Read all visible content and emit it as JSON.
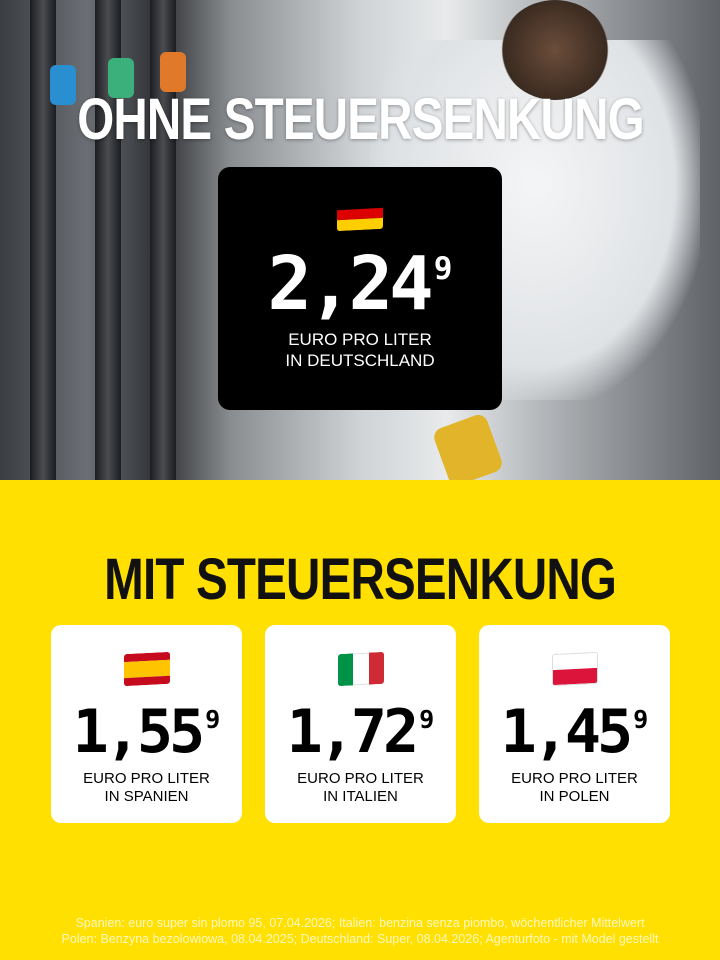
{
  "header": {
    "title": "OHNE STEUERSENKUNG"
  },
  "germany": {
    "flag_icon": "germany-flag-icon",
    "flag_colors": [
      "#000000",
      "#DD0000",
      "#FFCE00"
    ],
    "price_main": "2,24",
    "price_sup": "9",
    "label_line1": "EURO PRO LITER",
    "label_line2": "IN DEUTSCHLAND"
  },
  "section": {
    "title": "MIT STEUERSENKUNG"
  },
  "countries": [
    {
      "flag_icon": "spain-flag-icon",
      "flag_colors": [
        "#C60B1E",
        "#FFC400",
        "#C60B1E"
      ],
      "price_main": "1,55",
      "price_sup": "9",
      "label_line1": "EURO PRO LITER",
      "label_line2": "IN SPANIEN"
    },
    {
      "flag_icon": "italy-flag-icon",
      "flag_colors": [
        "#009246",
        "#FFFFFF",
        "#CE2B37"
      ],
      "price_main": "1,72",
      "price_sup": "9",
      "label_line1": "EURO PRO LITER",
      "label_line2": "IN ITALIEN"
    },
    {
      "flag_icon": "poland-flag-icon",
      "flag_colors": [
        "#FFFFFF",
        "#DC143C"
      ],
      "price_main": "1,45",
      "price_sup": "9",
      "label_line1": "EURO PRO LITER",
      "label_line2": "IN POLEN"
    }
  ],
  "footer": {
    "line1": "Spanien: euro super sin plomo 95, 07.04.2026; Italien: benzina senza piombo, wöchentlicher Mittelwert",
    "line2": "Polen: Benzyna bezolowiowa, 08.04.2025; Deutschland: Super, 08.04.2026; Agenturfoto - mit Model gestellt"
  },
  "colors": {
    "background_yellow": "#FFE000",
    "card_dark": "#000000",
    "card_light": "#FFFFFF"
  }
}
